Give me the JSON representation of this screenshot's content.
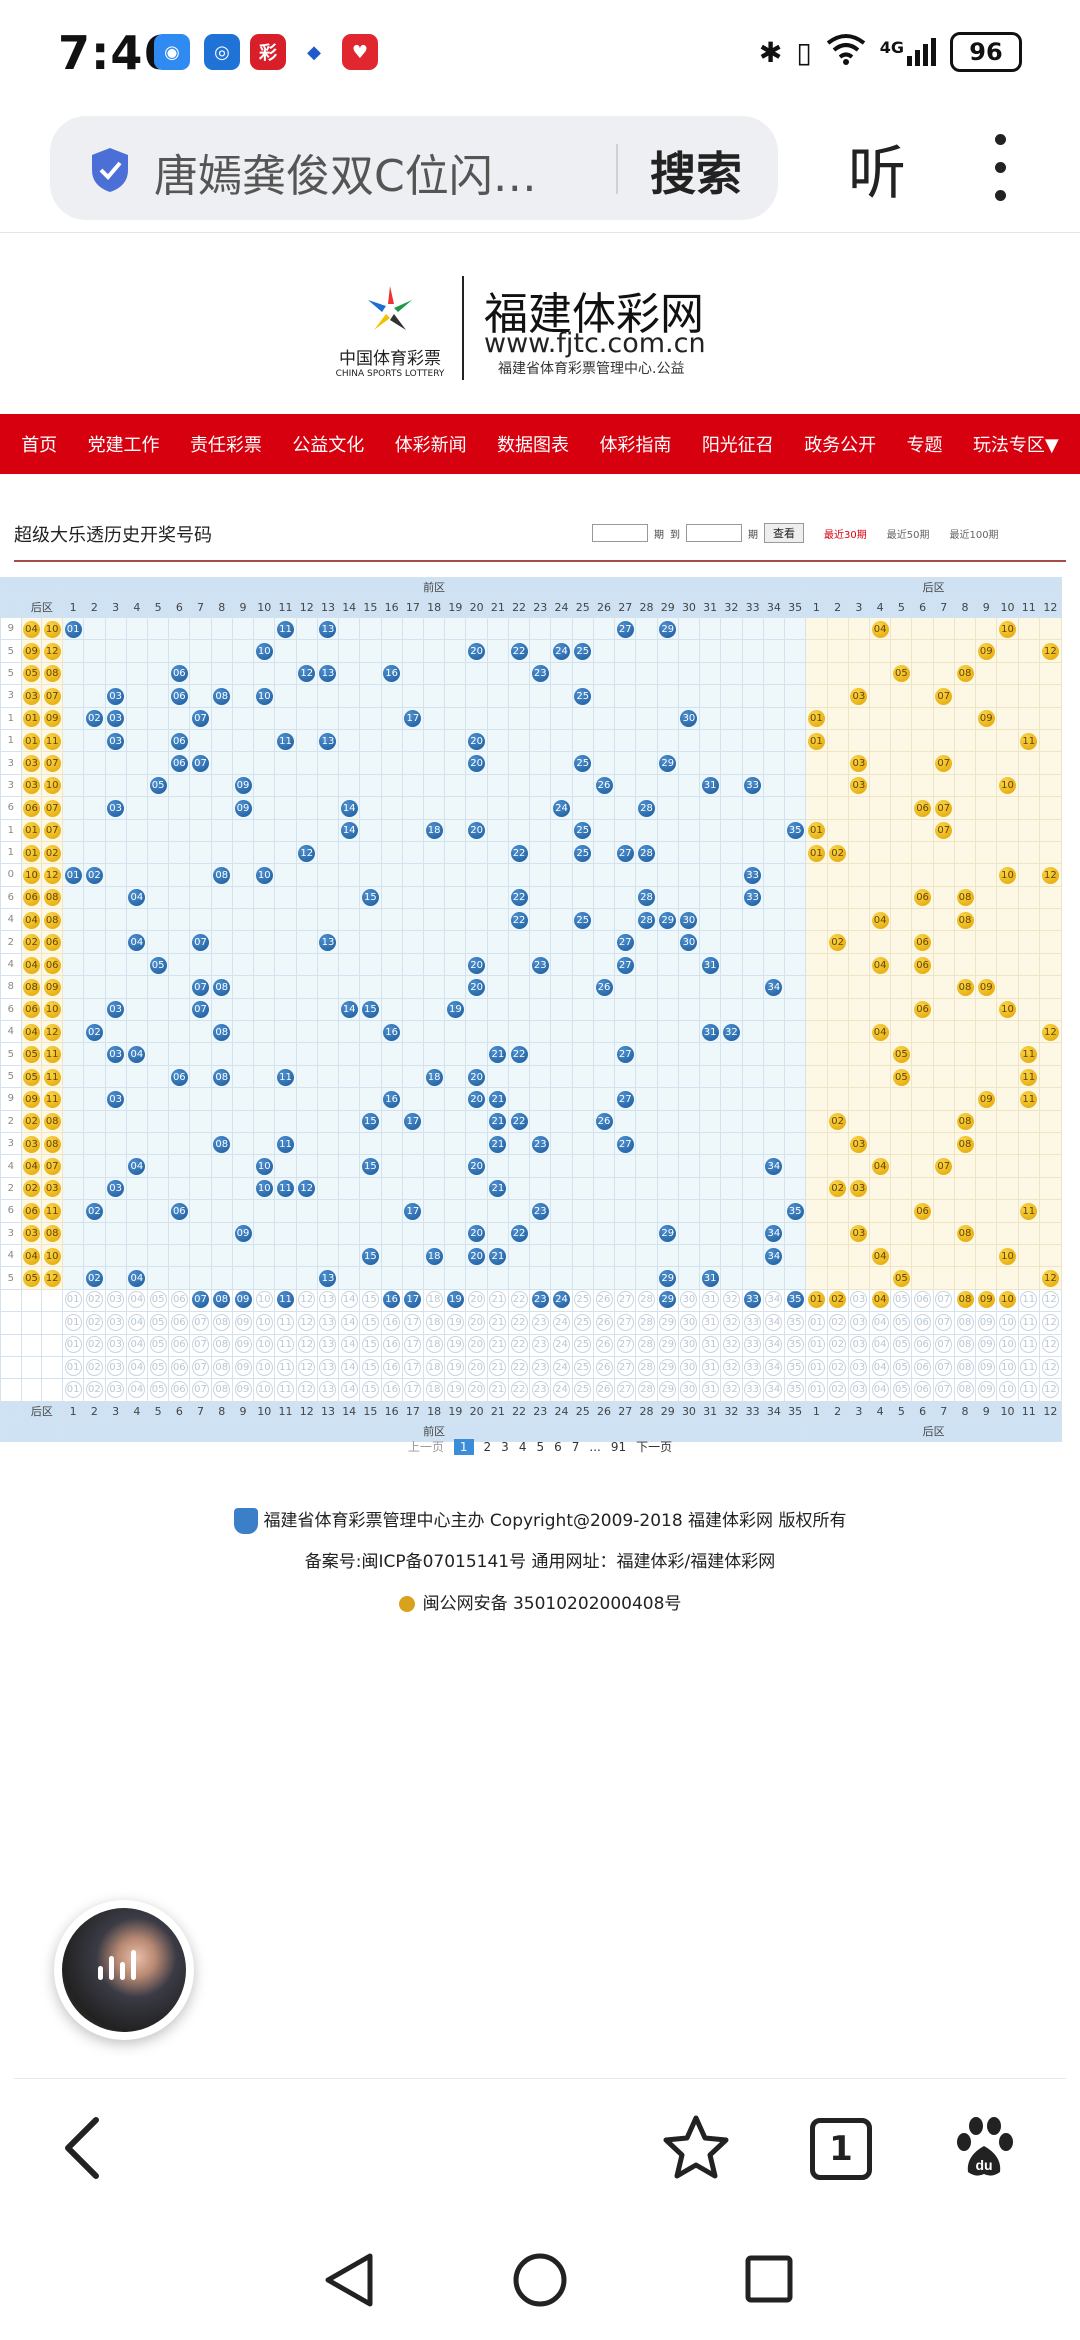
{
  "status_bar": {
    "time": "7:46",
    "network": "4G",
    "battery": "96",
    "notification_icons": [
      "chat-app-icon",
      "browser-app-icon",
      "sports-lottery-app-icon",
      "bank-app-icon",
      "heart-app-icon"
    ]
  },
  "browser": {
    "url_title": "唐嫣龚俊双C位闪…",
    "search_label": "搜索",
    "listen_label": "听"
  },
  "site": {
    "logo_cn": "中国体育彩票",
    "logo_en": "CHINA SPORTS LOTTERY",
    "name": "福建体彩网",
    "url": "www.fjtc.com.cn",
    "subtitle": "福建省体育彩票管理中心.公益",
    "nav": [
      "首页",
      "党建工作",
      "责任彩票",
      "公益文化",
      "体彩新闻",
      "数据图表",
      "体彩指南",
      "阳光征召",
      "政务公开",
      "专题",
      "玩法专区▼"
    ]
  },
  "panel": {
    "title": "超级大乐透历史开奖号码",
    "period_label": "期",
    "to_label": "到",
    "view_button": "查看",
    "recent": [
      "最近30期",
      "最近50期",
      "最近100期"
    ],
    "active_recent": "最近30期"
  },
  "table": {
    "front_label": "前区",
    "back_label": "后区",
    "front_max": 35,
    "back_max": 12,
    "draws": [
      {
        "f": [
          1,
          11,
          13,
          27,
          29
        ],
        "b": [
          4,
          10
        ],
        "l": "29",
        "lb": [
          "04",
          "10"
        ]
      },
      {
        "f": [
          10,
          20,
          22,
          24,
          25
        ],
        "b": [
          9,
          12
        ],
        "l": "25",
        "lb": [
          "09",
          "12"
        ]
      },
      {
        "f": [
          6,
          12,
          13,
          16,
          23
        ],
        "b": [
          5,
          8
        ],
        "l": "05",
        "lb": [
          "05",
          "08"
        ]
      },
      {
        "f": [
          3,
          6,
          8,
          10,
          25
        ],
        "b": [
          3,
          7
        ],
        "l": "03",
        "lb": [
          "03",
          "07"
        ]
      },
      {
        "f": [
          2,
          3,
          7,
          17,
          30
        ],
        "b": [
          1,
          9
        ],
        "l": "01",
        "lb": [
          "01",
          "09"
        ]
      },
      {
        "f": [
          3,
          6,
          11,
          13,
          20
        ],
        "b": [
          1,
          11
        ],
        "l": "01",
        "lb": [
          "01",
          "11"
        ]
      },
      {
        "f": [
          6,
          7,
          20,
          25,
          29
        ],
        "b": [
          3,
          7
        ],
        "l": "03",
        "lb": [
          "03",
          "07"
        ]
      },
      {
        "f": [
          5,
          9,
          26,
          31,
          33
        ],
        "b": [
          3,
          10
        ],
        "l": "03",
        "lb": [
          "03",
          "10"
        ]
      },
      {
        "f": [
          3,
          9,
          14,
          24,
          28
        ],
        "b": [
          6,
          7
        ],
        "l": "06",
        "lb": [
          "06",
          "07"
        ]
      },
      {
        "f": [
          14,
          18,
          20,
          25,
          35
        ],
        "b": [
          1,
          7
        ],
        "l": "01",
        "lb": [
          "01",
          "07"
        ]
      },
      {
        "f": [
          12,
          22,
          25,
          27,
          28
        ],
        "b": [
          1,
          2
        ],
        "l": "01",
        "lb": [
          "01",
          "02"
        ]
      },
      {
        "f": [
          1,
          2,
          8,
          10,
          33
        ],
        "b": [
          10,
          12
        ],
        "l": "10",
        "lb": [
          "10",
          "12"
        ]
      },
      {
        "f": [
          4,
          15,
          22,
          28,
          33
        ],
        "b": [
          6,
          8
        ],
        "l": "06",
        "lb": [
          "06",
          "08"
        ]
      },
      {
        "f": [
          22,
          25,
          28,
          29,
          30
        ],
        "b": [
          4,
          8
        ],
        "l": "04",
        "lb": [
          "04",
          "08"
        ]
      },
      {
        "f": [
          4,
          7,
          13,
          27,
          30
        ],
        "b": [
          2,
          6
        ],
        "l": "02",
        "lb": [
          "02",
          "06"
        ]
      },
      {
        "f": [
          5,
          20,
          23,
          27,
          31
        ],
        "b": [
          4,
          6
        ],
        "l": "04",
        "lb": [
          "04",
          "06"
        ]
      },
      {
        "f": [
          7,
          8,
          20,
          26,
          34
        ],
        "b": [
          8,
          9
        ],
        "l": "08",
        "lb": [
          "08",
          "09"
        ]
      },
      {
        "f": [
          3,
          7,
          14,
          15,
          19
        ],
        "b": [
          6,
          10
        ],
        "l": "06",
        "lb": [
          "06",
          "10"
        ]
      },
      {
        "f": [
          2,
          8,
          16,
          31,
          32
        ],
        "b": [
          4,
          12
        ],
        "l": "04",
        "lb": [
          "04",
          "12"
        ]
      },
      {
        "f": [
          3,
          4,
          21,
          22,
          27
        ],
        "b": [
          5,
          11
        ],
        "l": "05",
        "lb": [
          "05",
          "11"
        ]
      },
      {
        "f": [
          6,
          8,
          11,
          18,
          20
        ],
        "b": [
          5,
          11
        ],
        "l": "05",
        "lb": [
          "05",
          "11"
        ]
      },
      {
        "f": [
          3,
          16,
          20,
          21,
          27
        ],
        "b": [
          9,
          11
        ],
        "l": "09",
        "lb": [
          "09",
          "11"
        ]
      },
      {
        "f": [
          15,
          17,
          21,
          22,
          26
        ],
        "b": [
          2,
          8
        ],
        "l": "02",
        "lb": [
          "02",
          "08"
        ]
      },
      {
        "f": [
          8,
          11,
          21,
          23,
          27
        ],
        "b": [
          3,
          8
        ],
        "l": "03",
        "lb": [
          "03",
          "08"
        ]
      },
      {
        "f": [
          4,
          10,
          15,
          20,
          34
        ],
        "b": [
          4,
          7
        ],
        "l": "04",
        "lb": [
          "04",
          "07"
        ]
      },
      {
        "f": [
          3,
          10,
          11,
          12,
          21
        ],
        "b": [
          2,
          3
        ],
        "l": "02",
        "lb": [
          "02",
          "03"
        ]
      },
      {
        "f": [
          2,
          6,
          17,
          23,
          35
        ],
        "b": [
          6,
          11
        ],
        "l": "06",
        "lb": [
          "06",
          "11"
        ]
      },
      {
        "f": [
          9,
          20,
          22,
          29,
          34
        ],
        "b": [
          3,
          8
        ],
        "l": "03",
        "lb": [
          "03",
          "08"
        ]
      },
      {
        "f": [
          15,
          18,
          20,
          21,
          34
        ],
        "b": [
          4,
          10
        ],
        "l": "04",
        "lb": [
          "04",
          "10"
        ]
      },
      {
        "f": [
          2,
          4,
          13,
          29,
          31
        ],
        "b": [
          5,
          12
        ],
        "l": "05",
        "lb": [
          "05",
          "12"
        ]
      }
    ],
    "prediction": {
      "f": [
        7,
        8,
        9,
        11,
        16,
        17,
        19,
        23,
        24,
        29,
        33,
        35
      ],
      "b": [
        1,
        2,
        4,
        8,
        9,
        10
      ]
    }
  },
  "pager": {
    "prev": "上一页",
    "pages": [
      "1",
      "2",
      "3",
      "4",
      "5",
      "6",
      "7"
    ],
    "ellipsis": "...",
    "last": "91",
    "next": "下一页",
    "current": "1"
  },
  "footer": {
    "line1": "福建省体育彩票管理中心主办 Copyright@2009-2018 福建体彩网 版权所有",
    "line2": "备案号:闽ICP备07015141号   通用网址：福建体彩/福建体彩网",
    "line3": "闽公网安备 35010202000408号"
  },
  "toolbar": {
    "icons": [
      "back-arrow-icon",
      "star-icon",
      "tabs-icon",
      "baidu-paw-icon"
    ],
    "tab_count": "1"
  }
}
